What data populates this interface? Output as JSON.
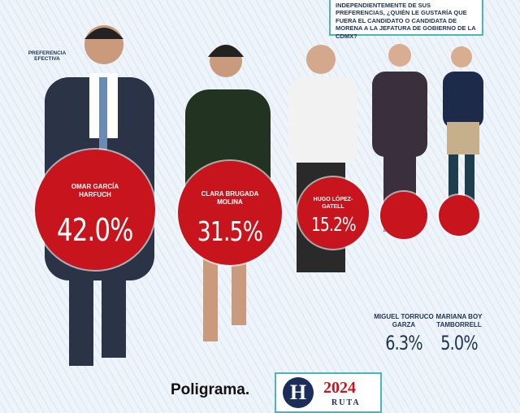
{
  "chart_data": {
    "type": "bubble",
    "question": "INDEPENDIENTEMENTE DE SUS PREFERENCIAS, ¿QUIÉN LE GUSTARÍA QUE FUERA EL CANDIDATO O CANDIDATA DE MORENA A LA JEFATURA DE GOBIERNO DE LA CDMX?",
    "subtitle": "PREFERENCIA EFECTIVA",
    "categories": [
      "OMAR GARCÍA HARFUCH",
      "CLARA BRUGADA MOLINA",
      "HUGO LÓPEZ-GATELL",
      "MIGUEL TORRUCO GARZA",
      "MARIANA BOY TAMBORRELL"
    ],
    "values": [
      42.0,
      31.5,
      15.2,
      6.3,
      5.0
    ],
    "value_labels": [
      "42.0%",
      "31.5%",
      "15.2%",
      "6.3%",
      "5.0%"
    ],
    "color": "#c8151d",
    "source": "Poligrama.",
    "logo": {
      "letter": "H",
      "year": "2024",
      "word": "RUTA"
    }
  }
}
